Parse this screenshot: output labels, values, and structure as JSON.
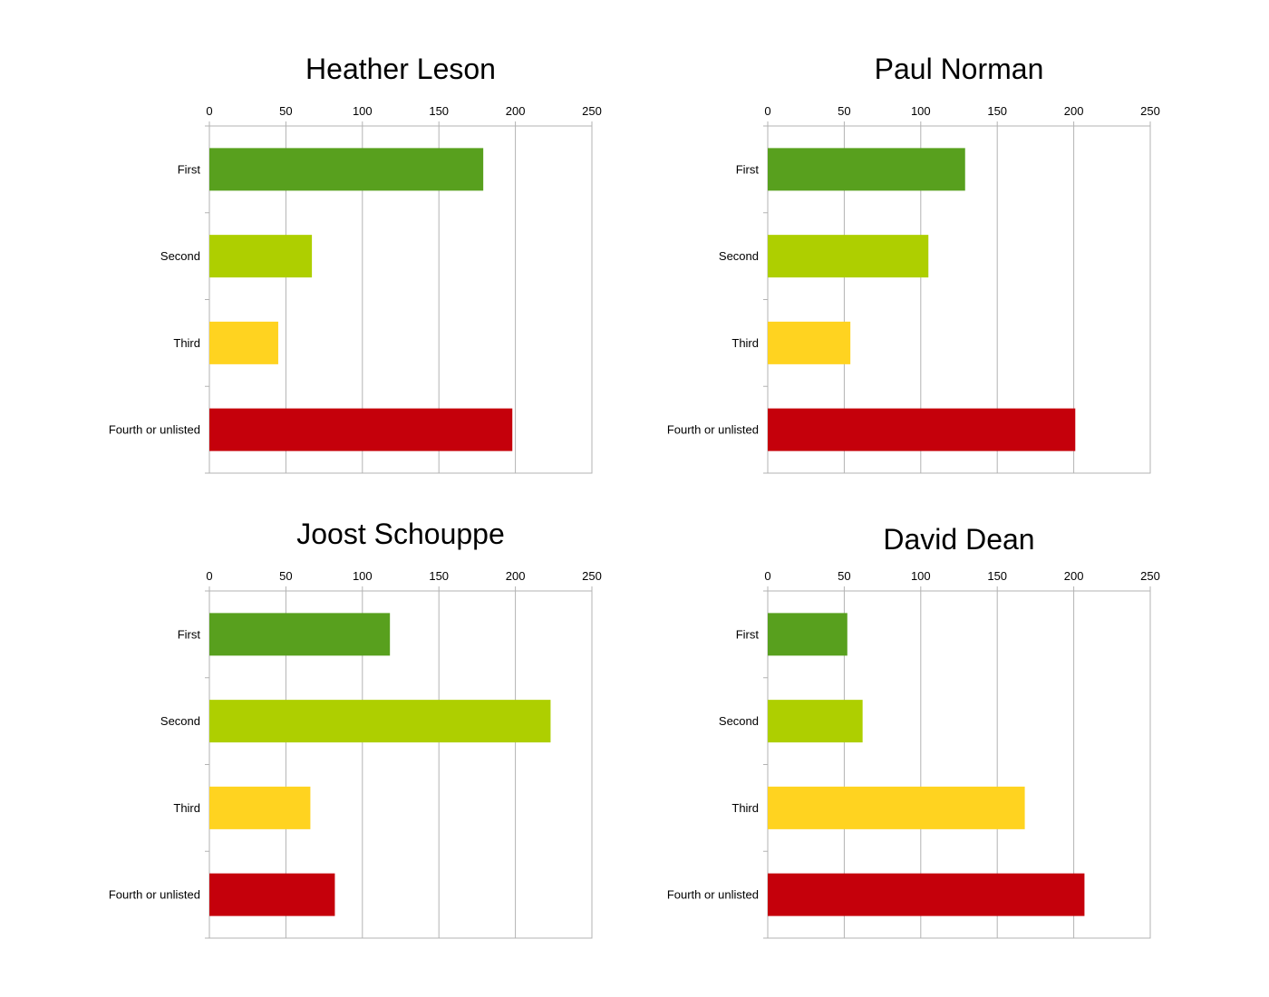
{
  "chart_data": [
    {
      "type": "bar",
      "orientation": "horizontal",
      "title": "Heather Leson",
      "categories": [
        "First",
        "Second",
        "Third",
        "Fourth or unlisted"
      ],
      "values": [
        179,
        67,
        45,
        198
      ],
      "xlim": [
        0,
        250
      ],
      "xticks": [
        "0",
        "50",
        "100",
        "150",
        "200",
        "250"
      ],
      "xaxis_position": "top",
      "grid": true,
      "colors": [
        "#58a01e",
        "#aecf00",
        "#ffd320",
        "#c5000b"
      ]
    },
    {
      "type": "bar",
      "orientation": "horizontal",
      "title": "Paul Norman",
      "categories": [
        "First",
        "Second",
        "Third",
        "Fourth or unlisted"
      ],
      "values": [
        129,
        105,
        54,
        201
      ],
      "xlim": [
        0,
        250
      ],
      "xticks": [
        "0",
        "50",
        "100",
        "150",
        "200",
        "250"
      ],
      "xaxis_position": "top",
      "grid": true,
      "colors": [
        "#58a01e",
        "#aecf00",
        "#ffd320",
        "#c5000b"
      ]
    },
    {
      "type": "bar",
      "orientation": "horizontal",
      "title": "Joost Schouppe",
      "categories": [
        "First",
        "Second",
        "Third",
        "Fourth or unlisted"
      ],
      "values": [
        118,
        223,
        66,
        82
      ],
      "xlim": [
        0,
        250
      ],
      "xticks": [
        "0",
        "50",
        "100",
        "150",
        "200",
        "250"
      ],
      "xaxis_position": "top",
      "grid": true,
      "colors": [
        "#58a01e",
        "#aecf00",
        "#ffd320",
        "#c5000b"
      ]
    },
    {
      "type": "bar",
      "orientation": "horizontal",
      "title": "David Dean",
      "categories": [
        "First",
        "Second",
        "Third",
        "Fourth or unlisted"
      ],
      "values": [
        52,
        62,
        168,
        207
      ],
      "xlim": [
        0,
        250
      ],
      "xticks": [
        "0",
        "50",
        "100",
        "150",
        "200",
        "250"
      ],
      "xaxis_position": "top",
      "grid": true,
      "colors": [
        "#58a01e",
        "#aecf00",
        "#ffd320",
        "#c5000b"
      ]
    }
  ]
}
